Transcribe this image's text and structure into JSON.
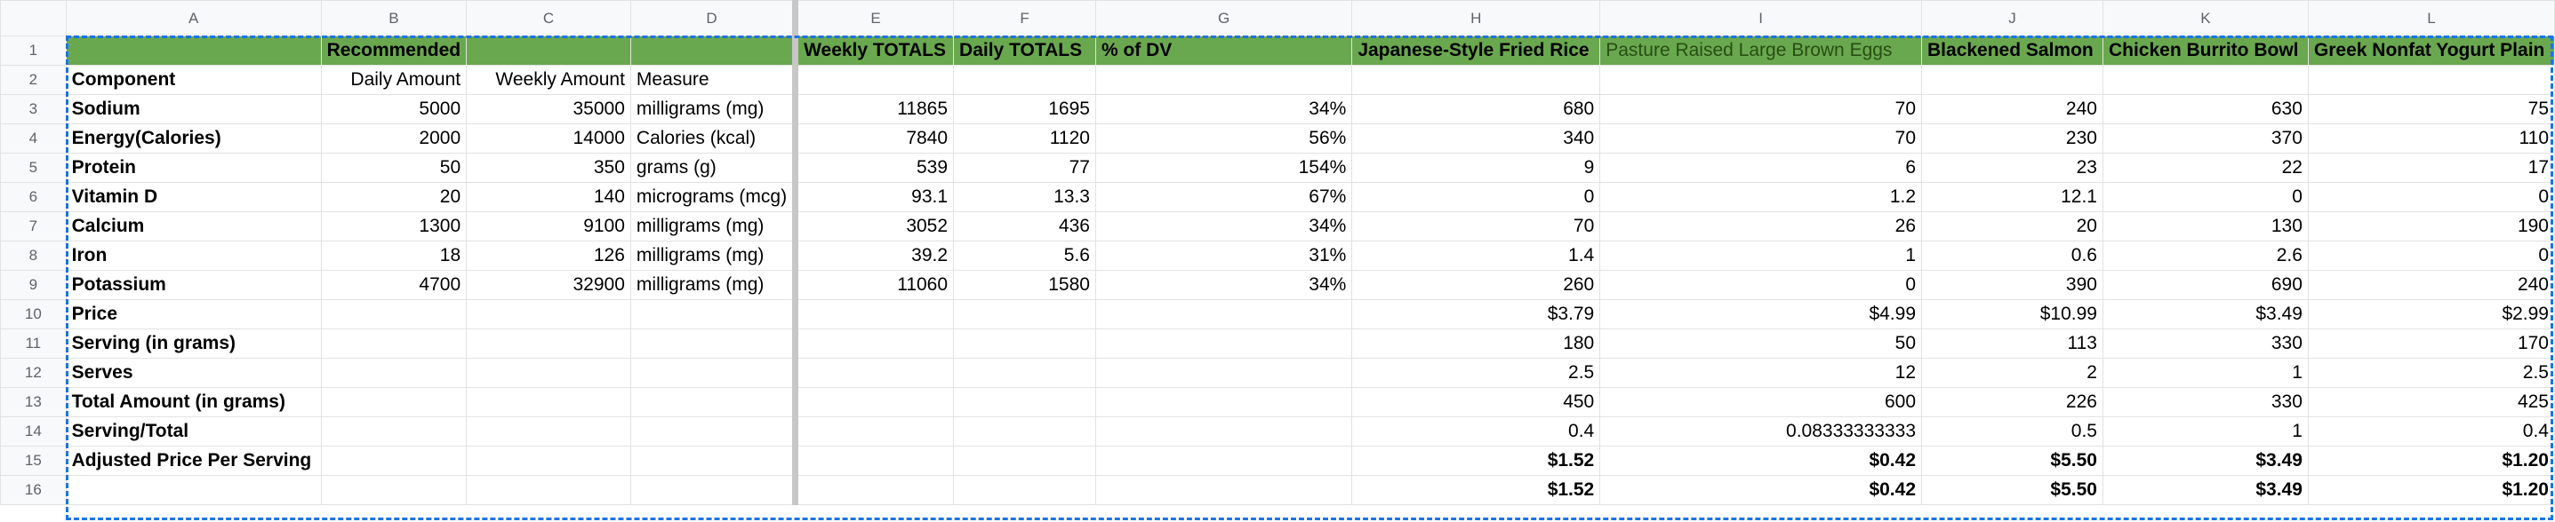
{
  "columns": [
    "A",
    "B",
    "C",
    "D",
    "E",
    "F",
    "G",
    "H",
    "I",
    "J",
    "K",
    "L"
  ],
  "rows": [
    [
      "",
      "Recommended",
      "",
      "",
      "Weekly TOTALS",
      "Daily TOTALS",
      "% of DV",
      "Japanese-Style Fried Rice",
      "Pasture Raised Large Brown Eggs",
      "Blackened Salmon",
      "Chicken Burrito Bowl",
      "Greek Nonfat Yogurt Plain"
    ],
    [
      "Component",
      "Daily Amount",
      "Weekly Amount",
      "Measure",
      "",
      "",
      "",
      "",
      "",
      "",
      "",
      ""
    ],
    [
      "Sodium",
      "5000",
      "35000",
      "milligrams (mg)",
      "11865",
      "1695",
      "34%",
      "680",
      "70",
      "240",
      "630",
      "75"
    ],
    [
      "Energy(Calories)",
      "2000",
      "14000",
      "Calories (kcal)",
      "7840",
      "1120",
      "56%",
      "340",
      "70",
      "230",
      "370",
      "110"
    ],
    [
      "Protein",
      "50",
      "350",
      "grams (g)",
      "539",
      "77",
      "154%",
      "9",
      "6",
      "23",
      "22",
      "17"
    ],
    [
      "Vitamin D",
      "20",
      "140",
      "micrograms (mcg)",
      "93.1",
      "13.3",
      "67%",
      "0",
      "1.2",
      "12.1",
      "0",
      "0"
    ],
    [
      "Calcium",
      "1300",
      "9100",
      "milligrams (mg)",
      "3052",
      "436",
      "34%",
      "70",
      "26",
      "20",
      "130",
      "190"
    ],
    [
      "Iron",
      "18",
      "126",
      "milligrams (mg)",
      "39.2",
      "5.6",
      "31%",
      "1.4",
      "1",
      "0.6",
      "2.6",
      "0"
    ],
    [
      "Potassium",
      "4700",
      "32900",
      "milligrams (mg)",
      "11060",
      "1580",
      "34%",
      "260",
      "0",
      "390",
      "690",
      "240"
    ],
    [
      "Price",
      "",
      "",
      "",
      "",
      "",
      "",
      "$3.79",
      "$4.99",
      "$10.99",
      "$3.49",
      "$2.99"
    ],
    [
      "Serving (in grams)",
      "",
      "",
      "",
      "",
      "",
      "",
      "180",
      "50",
      "113",
      "330",
      "170"
    ],
    [
      "Serves",
      "",
      "",
      "",
      "",
      "",
      "",
      "2.5",
      "12",
      "2",
      "1",
      "2.5"
    ],
    [
      "Total Amount (in grams)",
      "",
      "",
      "",
      "",
      "",
      "",
      "450",
      "600",
      "226",
      "330",
      "425"
    ],
    [
      "Serving/Total",
      "",
      "",
      "",
      "",
      "",
      "",
      "0.4",
      "0.08333333333",
      "0.5",
      "1",
      "0.4"
    ],
    [
      "Adjusted Price Per Serving",
      "",
      "",
      "",
      "",
      "",
      "",
      "$1.52",
      "$0.42",
      "$5.50",
      "$3.49",
      "$1.20"
    ],
    [
      "",
      "",
      "",
      "",
      "",
      "",
      "",
      "$1.52",
      "$0.42",
      "$5.50",
      "$3.49",
      "$1.20"
    ]
  ]
}
